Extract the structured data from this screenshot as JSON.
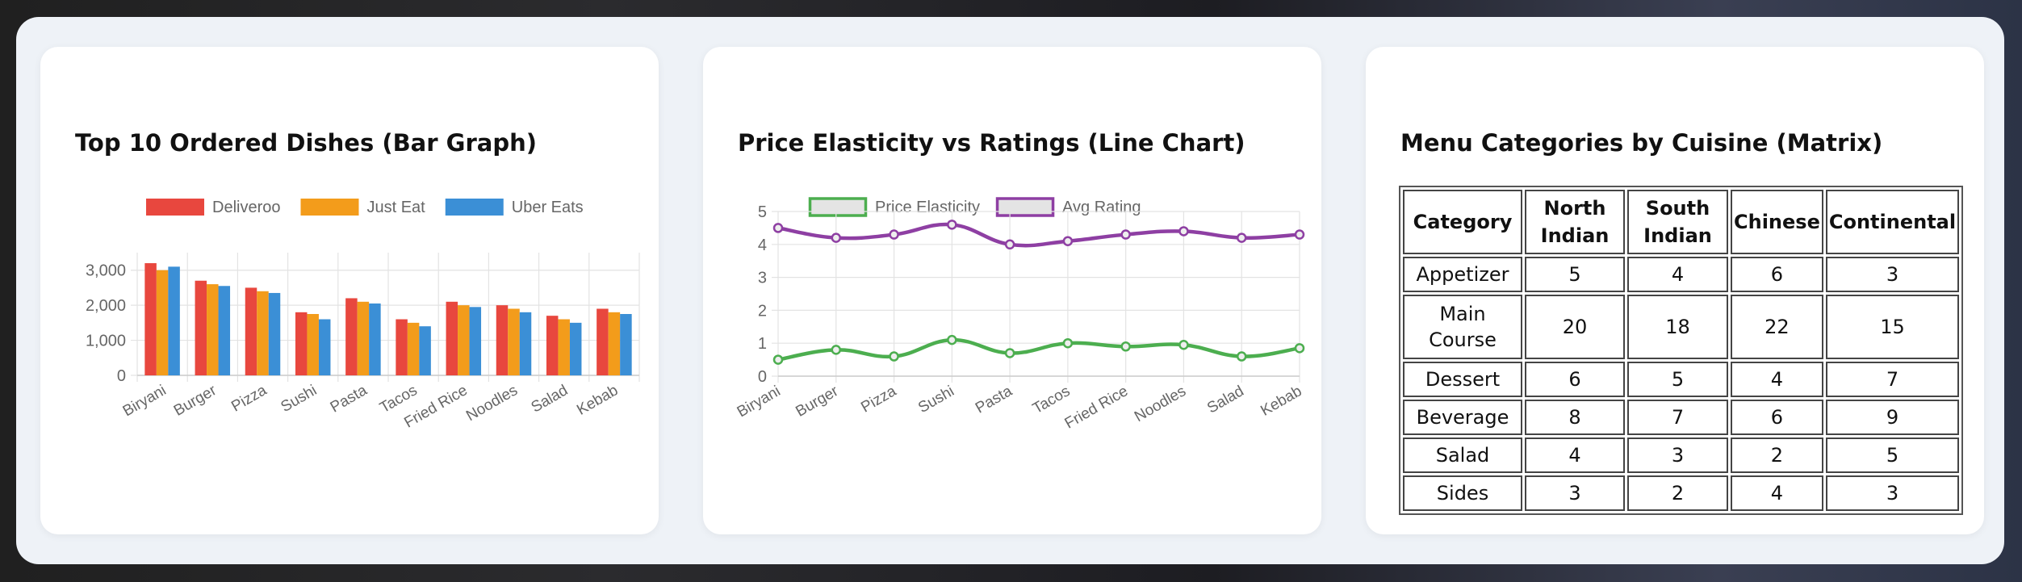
{
  "charts": {
    "bar": {
      "title": "Top 10 Ordered Dishes (Bar Graph)"
    },
    "line": {
      "title": "Price Elasticity vs Ratings (Line Chart)"
    }
  },
  "matrix": {
    "title": "Menu Categories by Cuisine (Matrix)",
    "header_cells": [
      {
        "text": "Category"
      },
      {
        "text": "North Indian"
      },
      {
        "text": "South Indian"
      },
      {
        "text": "Chinese"
      },
      {
        "text": "Continental"
      }
    ],
    "rows": [
      {
        "cells": [
          {
            "text": "Appetizer"
          },
          {
            "text": "5"
          },
          {
            "text": "4"
          },
          {
            "text": "6"
          },
          {
            "text": "3"
          }
        ]
      },
      {
        "cells": [
          {
            "text": "Main Course"
          },
          {
            "text": "20"
          },
          {
            "text": "18"
          },
          {
            "text": "22"
          },
          {
            "text": "15"
          }
        ]
      },
      {
        "cells": [
          {
            "text": "Dessert"
          },
          {
            "text": "6"
          },
          {
            "text": "5"
          },
          {
            "text": "4"
          },
          {
            "text": "7"
          }
        ]
      },
      {
        "cells": [
          {
            "text": "Beverage"
          },
          {
            "text": "8"
          },
          {
            "text": "7"
          },
          {
            "text": "6"
          },
          {
            "text": "9"
          }
        ]
      },
      {
        "cells": [
          {
            "text": "Salad"
          },
          {
            "text": "4"
          },
          {
            "text": "3"
          },
          {
            "text": "2"
          },
          {
            "text": "5"
          }
        ]
      },
      {
        "cells": [
          {
            "text": "Sides"
          },
          {
            "text": "3"
          },
          {
            "text": "2"
          },
          {
            "text": "4"
          },
          {
            "text": "3"
          }
        ]
      }
    ]
  },
  "chart_data": [
    {
      "type": "bar",
      "title": "Top 10 Ordered Dishes (Bar Graph)",
      "categories": [
        "Biryani",
        "Burger",
        "Pizza",
        "Sushi",
        "Pasta",
        "Tacos",
        "Fried Rice",
        "Noodles",
        "Salad",
        "Kebab"
      ],
      "series": [
        {
          "name": "Deliveroo",
          "color": "#e8473e",
          "values": [
            3200,
            2700,
            2500,
            1800,
            2200,
            1600,
            2100,
            2000,
            1700,
            1900
          ]
        },
        {
          "name": "Just Eat",
          "color": "#f39c1b",
          "values": [
            3000,
            2600,
            2400,
            1750,
            2100,
            1500,
            2000,
            1900,
            1600,
            1800
          ]
        },
        {
          "name": "Uber Eats",
          "color": "#3b8fd6",
          "values": [
            3100,
            2550,
            2350,
            1600,
            2050,
            1400,
            1950,
            1800,
            1500,
            1750
          ]
        }
      ],
      "ylim": [
        0,
        3500
      ],
      "yticks": [
        {
          "v": 0,
          "label": "0"
        },
        {
          "v": 1000,
          "label": "1,000"
        },
        {
          "v": 2000,
          "label": "2,000"
        },
        {
          "v": 3000,
          "label": "3,000"
        }
      ],
      "grid": true,
      "legend": "top-center"
    },
    {
      "type": "line",
      "title": "Price Elasticity vs Ratings (Line Chart)",
      "categories": [
        "Biryani",
        "Burger",
        "Pizza",
        "Sushi",
        "Pasta",
        "Tacos",
        "Fried Rice",
        "Noodles",
        "Salad",
        "Kebab"
      ],
      "series": [
        {
          "name": "Price Elasticity",
          "color": "#4cae4f",
          "values": [
            0.5,
            0.8,
            0.6,
            1.1,
            0.7,
            1.0,
            0.9,
            0.95,
            0.6,
            0.85
          ]
        },
        {
          "name": "Avg Rating",
          "color": "#8e3fa3",
          "values": [
            4.5,
            4.2,
            4.3,
            4.6,
            4.0,
            4.1,
            4.3,
            4.4,
            4.2,
            4.3
          ]
        }
      ],
      "ylim": [
        0,
        5
      ],
      "yticks": [
        {
          "v": 0,
          "label": "0"
        },
        {
          "v": 1,
          "label": "1"
        },
        {
          "v": 2,
          "label": "2"
        },
        {
          "v": 3,
          "label": "3"
        },
        {
          "v": 4,
          "label": "4"
        },
        {
          "v": 5,
          "label": "5"
        }
      ],
      "grid": true,
      "legend": "top-center"
    }
  ]
}
